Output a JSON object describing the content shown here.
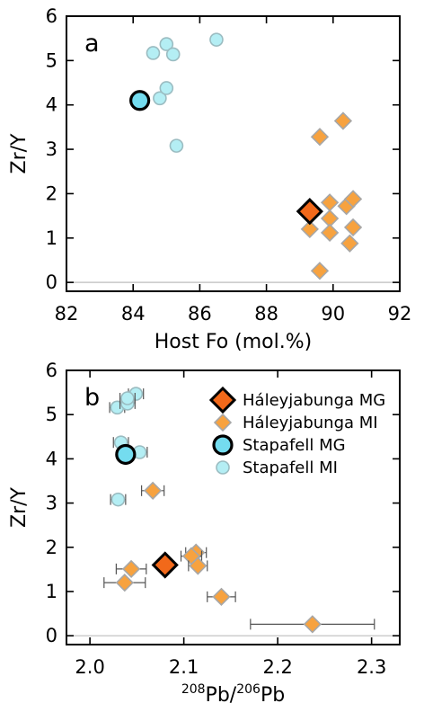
{
  "colors": {
    "hal_fill": "#f7a23f",
    "hal_edge": "#a7a7a7",
    "hal_mg_fill": "#f2691a",
    "sta_fill": "#b4eef4",
    "sta_edge": "#9bbcc1",
    "sta_mg_fill": "#74dcef",
    "mg_edge": "#000000",
    "zero_line": "#c8c8c8",
    "error_bar": "#555555"
  },
  "chart_data": [
    {
      "type": "scatter",
      "panel_label": "a",
      "xlabel": "Host Fo (mol.%)",
      "ylabel": "Zr/Y",
      "xlim": [
        82,
        92
      ],
      "ylim": [
        -0.2,
        6
      ],
      "xticks": [
        "82",
        "84",
        "86",
        "88",
        "90",
        "92"
      ],
      "yticks": [
        "0",
        "1",
        "2",
        "3",
        "4",
        "5",
        "6"
      ],
      "grid": false,
      "legend": false,
      "reference_line": 0,
      "series": [
        {
          "name": "Stapafell MI",
          "marker": "circle",
          "points": [
            {
              "x": 84.6,
              "y": 5.17
            },
            {
              "x": 85.0,
              "y": 5.37
            },
            {
              "x": 85.2,
              "y": 5.14
            },
            {
              "x": 86.5,
              "y": 5.47
            },
            {
              "x": 84.8,
              "y": 4.15
            },
            {
              "x": 85.0,
              "y": 4.38
            },
            {
              "x": 85.3,
              "y": 3.08
            }
          ]
        },
        {
          "name": "Stapafell MG",
          "marker": "circle-large",
          "points": [
            {
              "x": 84.2,
              "y": 4.1
            }
          ]
        },
        {
          "name": "Háleyjabunga MI",
          "marker": "diamond",
          "points": [
            {
              "x": 89.6,
              "y": 3.28
            },
            {
              "x": 90.3,
              "y": 3.64
            },
            {
              "x": 89.9,
              "y": 1.8
            },
            {
              "x": 90.4,
              "y": 1.72
            },
            {
              "x": 90.6,
              "y": 1.88
            },
            {
              "x": 89.9,
              "y": 1.44
            },
            {
              "x": 89.3,
              "y": 1.2
            },
            {
              "x": 89.9,
              "y": 1.12
            },
            {
              "x": 90.6,
              "y": 1.24
            },
            {
              "x": 90.5,
              "y": 0.88
            },
            {
              "x": 89.6,
              "y": 0.26
            }
          ]
        },
        {
          "name": "Háleyjabunga MG",
          "marker": "diamond-large",
          "points": [
            {
              "x": 89.3,
              "y": 1.6
            }
          ]
        }
      ]
    },
    {
      "type": "scatter",
      "panel_label": "b",
      "xlabel": "208Pb/206Pb",
      "xlabel_parts": {
        "sup1": "208",
        "base1": "Pb/",
        "sup2": "206",
        "base2": "Pb"
      },
      "ylabel": "Zr/Y",
      "xlim": [
        1.975,
        2.33
      ],
      "ylim": [
        -0.2,
        6
      ],
      "xticks": [
        "2.0",
        "2.1",
        "2.2",
        "2.3"
      ],
      "xtick_values": [
        2.0,
        2.1,
        2.2,
        2.3
      ],
      "yticks": [
        "0",
        "1",
        "2",
        "3",
        "4",
        "5",
        "6"
      ],
      "grid": false,
      "legend": "top-right",
      "reference_line": 0,
      "series": [
        {
          "name": "Stapafell MI",
          "marker": "circle",
          "points": [
            {
              "x": 2.049,
              "y": 5.47,
              "xerr": 0.008
            },
            {
              "x": 2.029,
              "y": 5.16,
              "xerr": 0.008
            },
            {
              "x": 2.04,
              "y": 5.25,
              "xerr": 0.008
            },
            {
              "x": 2.04,
              "y": 5.37,
              "xerr": 0.008
            },
            {
              "x": 2.033,
              "y": 4.37,
              "xerr": 0.008
            },
            {
              "x": 2.053,
              "y": 4.15,
              "xerr": 0.008
            },
            {
              "x": 2.03,
              "y": 3.08,
              "xerr": 0.008
            }
          ]
        },
        {
          "name": "Stapafell MG",
          "marker": "circle-large",
          "points": [
            {
              "x": 2.038,
              "y": 4.1
            }
          ]
        },
        {
          "name": "Háleyjabunga MI",
          "marker": "diamond",
          "points": [
            {
              "x": 2.067,
              "y": 3.28,
              "xerr": 0.012
            },
            {
              "x": 2.113,
              "y": 1.88,
              "xerr": 0.011
            },
            {
              "x": 2.108,
              "y": 1.8,
              "xerr": 0.011
            },
            {
              "x": 2.115,
              "y": 1.58,
              "xerr": 0.01
            },
            {
              "x": 2.044,
              "y": 1.51,
              "xerr": 0.016
            },
            {
              "x": 2.037,
              "y": 1.2,
              "xerr": 0.022
            },
            {
              "x": 2.14,
              "y": 0.88,
              "xerr": 0.015
            },
            {
              "x": 2.237,
              "y": 0.26,
              "xerr": 0.066
            }
          ]
        },
        {
          "name": "Háleyjabunga MG",
          "marker": "diamond-large",
          "points": [
            {
              "x": 2.08,
              "y": 1.6
            }
          ]
        }
      ]
    }
  ]
}
